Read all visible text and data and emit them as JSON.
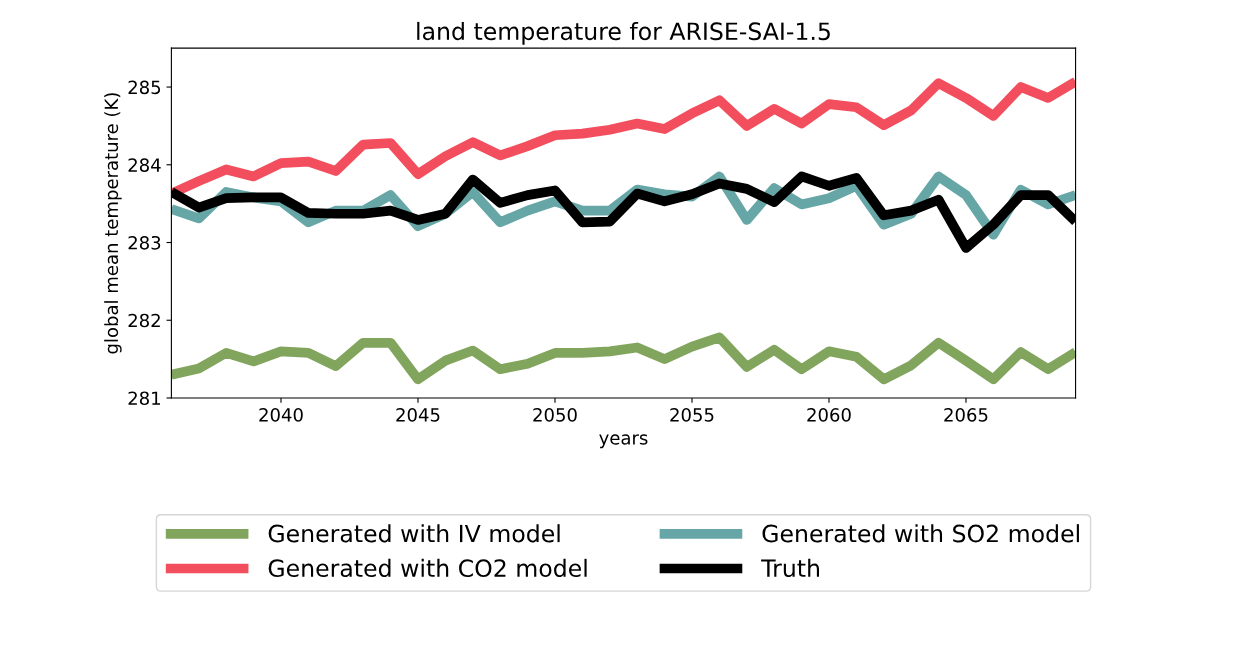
{
  "chart_data": {
    "type": "line",
    "title": "land temperature for ARISE-SAI-1.5",
    "xlabel": "years",
    "ylabel": "global mean temperature (K)",
    "x": [
      2036,
      2037,
      2038,
      2039,
      2040,
      2041,
      2042,
      2043,
      2044,
      2045,
      2046,
      2047,
      2048,
      2049,
      2050,
      2051,
      2052,
      2053,
      2054,
      2055,
      2056,
      2057,
      2058,
      2059,
      2060,
      2061,
      2062,
      2063,
      2064,
      2065,
      2066,
      2067,
      2068,
      2069
    ],
    "series": [
      {
        "name": "Generated with IV model",
        "color": "#82a55e",
        "values": [
          281.3,
          281.38,
          281.58,
          281.47,
          281.6,
          281.58,
          281.41,
          281.71,
          281.71,
          281.24,
          281.48,
          281.61,
          281.37,
          281.44,
          281.58,
          281.58,
          281.6,
          281.65,
          281.5,
          281.66,
          281.78,
          281.4,
          281.62,
          281.37,
          281.6,
          281.53,
          281.24,
          281.42,
          281.71,
          281.48,
          281.24,
          281.59,
          281.37,
          281.59
        ]
      },
      {
        "name": "Generated with CO2 model",
        "color": "#f24e5d",
        "values": [
          283.63,
          283.79,
          283.94,
          283.85,
          284.02,
          284.04,
          283.92,
          284.26,
          284.28,
          283.88,
          284.11,
          284.29,
          284.12,
          284.24,
          284.38,
          284.4,
          284.45,
          284.53,
          284.46,
          284.66,
          284.83,
          284.5,
          284.72,
          284.53,
          284.78,
          284.74,
          284.51,
          284.7,
          285.05,
          284.86,
          284.63,
          285.0,
          284.86,
          285.07
        ]
      },
      {
        "name": "Generated with SO2 model",
        "color": "#67a6a6",
        "values": [
          283.43,
          283.31,
          283.65,
          283.58,
          283.53,
          283.26,
          283.41,
          283.41,
          283.61,
          283.21,
          283.37,
          283.65,
          283.26,
          283.41,
          283.53,
          283.41,
          283.41,
          283.68,
          283.62,
          283.59,
          283.85,
          283.29,
          283.7,
          283.49,
          283.57,
          283.73,
          283.23,
          283.37,
          283.85,
          283.61,
          283.1,
          283.68,
          283.49,
          283.61
        ]
      },
      {
        "name": "Truth",
        "color": "#000000",
        "values": [
          283.65,
          283.45,
          283.57,
          283.58,
          283.58,
          283.38,
          283.37,
          283.37,
          283.41,
          283.29,
          283.37,
          283.81,
          283.51,
          283.61,
          283.67,
          283.26,
          283.27,
          283.63,
          283.53,
          283.62,
          283.76,
          283.69,
          283.52,
          283.85,
          283.73,
          283.83,
          283.35,
          283.41,
          283.55,
          282.93,
          283.23,
          283.61,
          283.61,
          283.27
        ]
      }
    ],
    "xlim": [
      2036,
      2069
    ],
    "xticks": [
      2040,
      2045,
      2050,
      2055,
      2060,
      2065
    ],
    "ylim": [
      281,
      285.5
    ],
    "yticks": [
      281,
      282,
      283,
      284,
      285
    ],
    "grid": false,
    "legend": "bottom",
    "marker": "none",
    "line_style": "solid"
  }
}
